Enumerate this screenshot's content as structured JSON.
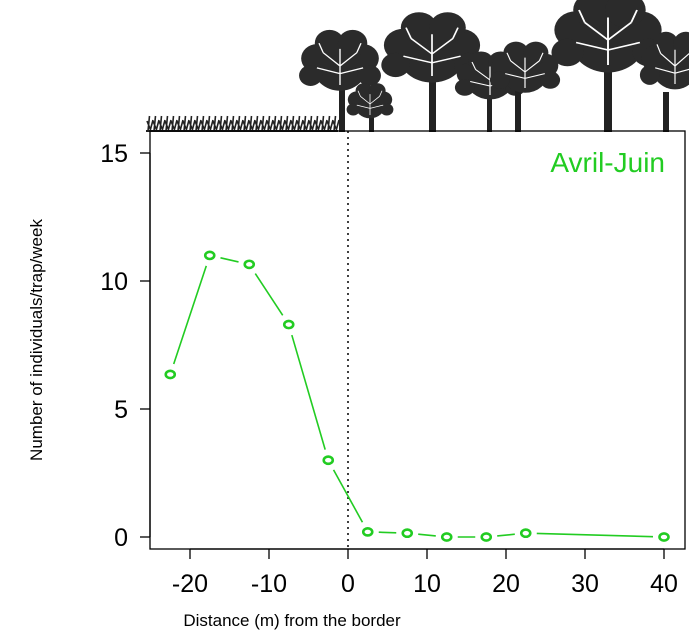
{
  "chart_data": {
    "type": "line",
    "title": "",
    "annotation": "Avril-Juin",
    "xlabel": "Distance (m) from the border",
    "ylabel": "Number of individuals/trap/week",
    "xlim": [
      -25,
      42
    ],
    "ylim": [
      -0.5,
      15.8
    ],
    "xticks": [
      -20,
      -10,
      0,
      10,
      20,
      30,
      40
    ],
    "xtick_labels": [
      "-20",
      "-10",
      "0",
      "10",
      "20",
      "30",
      "40"
    ],
    "yticks": [
      0,
      5,
      10,
      15
    ],
    "ytick_labels": [
      "0",
      "5",
      "10",
      "15"
    ],
    "vline_x": 0,
    "grid": false,
    "legend": "none",
    "series": [
      {
        "x": [
          -22.5,
          -17.5,
          -12.5,
          -7.5,
          -2.5,
          2.5,
          7.5,
          12.5,
          17.5,
          22.5,
          40
        ],
        "y": [
          6.35,
          11.0,
          10.65,
          8.3,
          3.0,
          0.2,
          0.15,
          0.0,
          0.0,
          0.15,
          0.0
        ],
        "color": "#22cc22",
        "marker": "open-circle"
      }
    ],
    "colors": {
      "series": "#22cc22",
      "annotation": "#22cc22",
      "axis": "#000000",
      "illustration": "#1f1f1f"
    },
    "illustration": {
      "left": "grass",
      "right": "forest-trees"
    }
  }
}
